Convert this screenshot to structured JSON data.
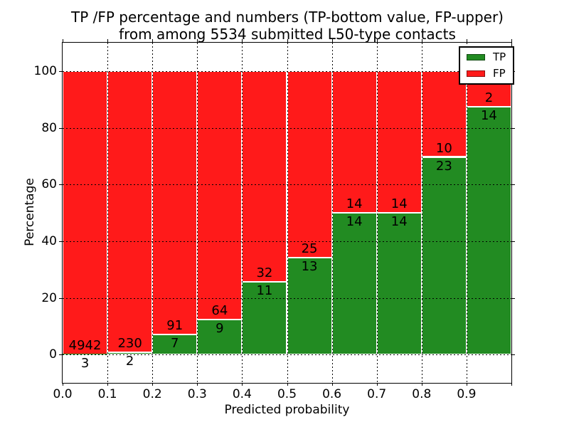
{
  "title": {
    "line1": "TP /FP percentage and numbers (TP-bottom value, FP-upper)",
    "line2": "from among 5534 submitted L50-type contacts"
  },
  "axes": {
    "xlabel": "Predicted probability",
    "ylabel": "Percentage"
  },
  "legend": {
    "position": "upper-right",
    "items": [
      {
        "label": "TP",
        "color": "#228B22"
      },
      {
        "label": "FP",
        "color": "#FF1A1A"
      }
    ]
  },
  "chart_data": {
    "type": "bar",
    "stacked": true,
    "title": "TP /FP percentage and numbers (TP-bottom value, FP-upper) from among 5534 submitted L50-type contacts",
    "xlabel": "Predicted probability",
    "ylabel": "Percentage",
    "xlim": [
      0.0,
      1.0
    ],
    "ylim": [
      -10,
      110
    ],
    "xticks": [
      "0.0",
      "0.1",
      "0.2",
      "0.3",
      "0.4",
      "0.5",
      "0.6",
      "0.7",
      "0.8",
      "0.9"
    ],
    "yticks": [
      0,
      20,
      40,
      60,
      80,
      100
    ],
    "grid": {
      "linestyle": "dotted",
      "color": "#000000"
    },
    "total_submitted": 5534,
    "bin_width": 0.1,
    "bin_starts": [
      0.0,
      0.1,
      0.2,
      0.3,
      0.4,
      0.5,
      0.6,
      0.7,
      0.8,
      0.9
    ],
    "series": [
      {
        "name": "TP",
        "color": "#228B22",
        "counts": [
          3,
          2,
          7,
          9,
          11,
          13,
          14,
          14,
          23,
          14
        ]
      },
      {
        "name": "FP",
        "color": "#FF1A1A",
        "counts": [
          4942,
          230,
          91,
          64,
          32,
          25,
          14,
          14,
          10,
          2
        ]
      }
    ],
    "tp_percent": [
      0.06,
      0.86,
      7.14,
      12.33,
      25.58,
      34.21,
      50.0,
      50.0,
      69.7,
      87.5
    ],
    "bar_edge_color": "#FFFFFF",
    "legend_position": "upper right"
  }
}
